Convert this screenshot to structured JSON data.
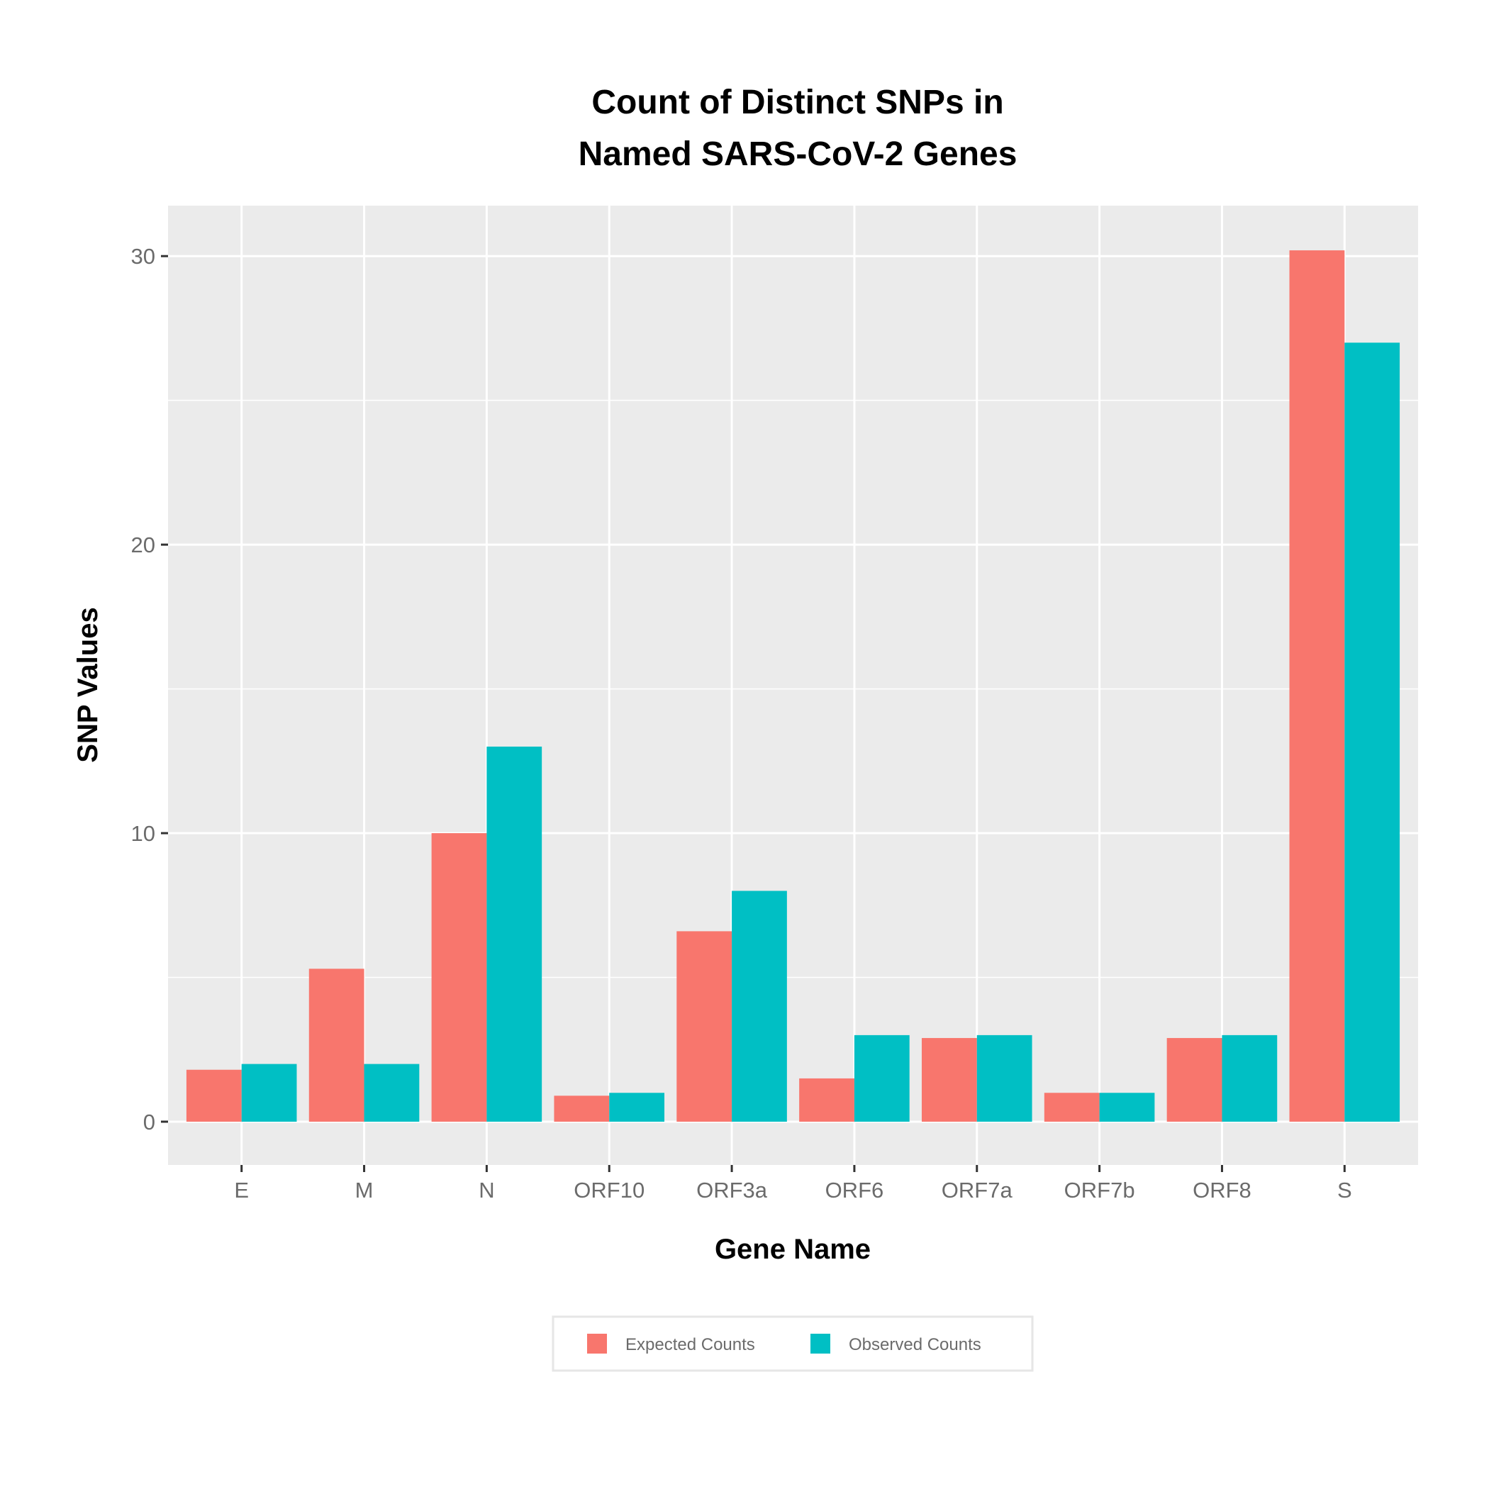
{
  "chart_data": {
    "type": "bar",
    "title_lines": [
      "Count of Distinct SNPs in",
      "Named SARS-CoV-2 Genes"
    ],
    "xlabel": "Gene Name",
    "ylabel": "SNP Values",
    "categories": [
      "E",
      "M",
      "N",
      "ORF10",
      "ORF3a",
      "ORF6",
      "ORF7a",
      "ORF7b",
      "ORF8",
      "S"
    ],
    "series": [
      {
        "name": "Expected Counts",
        "color": "#F8766D",
        "values": [
          1.8,
          5.3,
          10.0,
          0.9,
          6.6,
          1.5,
          2.9,
          1.0,
          2.9,
          30.2
        ]
      },
      {
        "name": "Observed Counts",
        "color": "#00BFC4",
        "values": [
          2,
          2,
          13,
          1,
          8,
          3,
          3,
          1,
          3,
          27
        ]
      }
    ],
    "ylim": [
      -1.5,
      31.75
    ],
    "yticks": [
      0,
      10,
      20,
      30
    ],
    "grid": true,
    "panel_background": "#EBEBEB",
    "legend_position": "bottom"
  }
}
